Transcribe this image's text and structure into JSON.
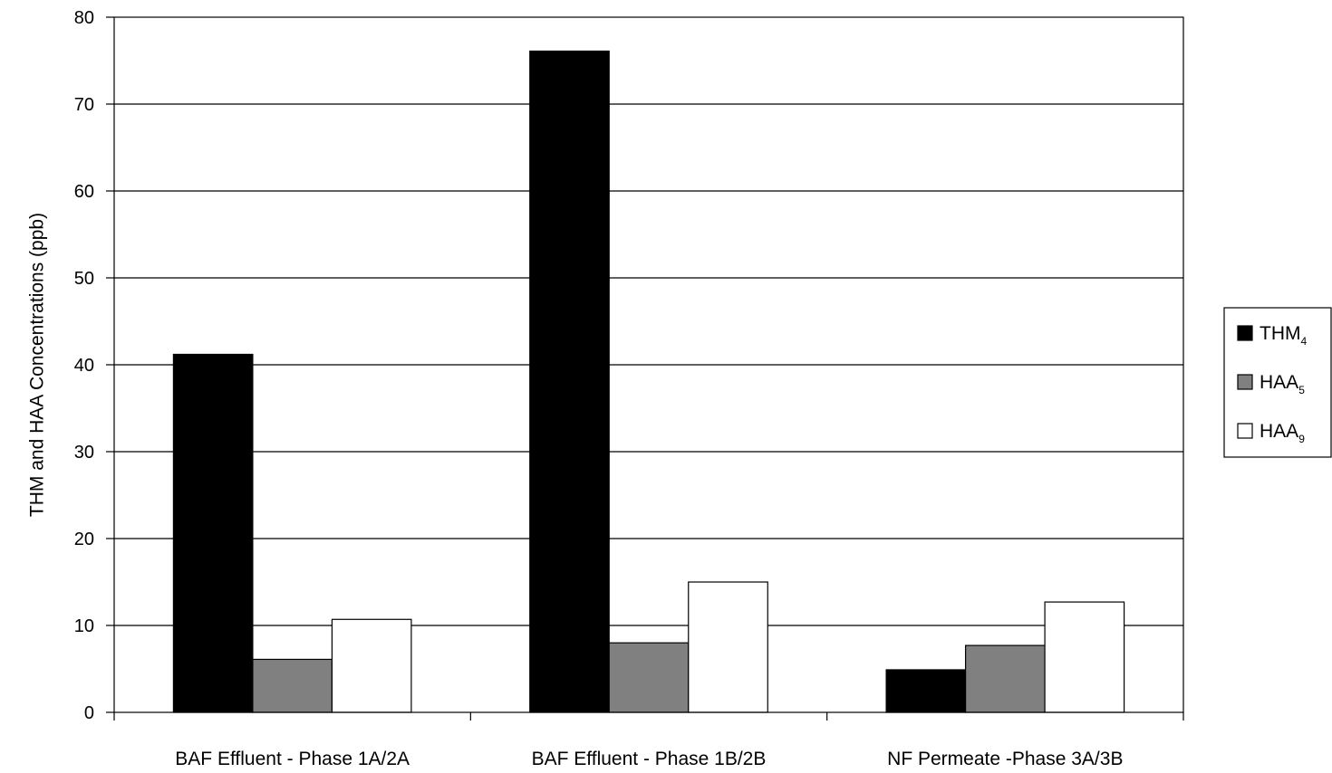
{
  "chart_data": {
    "type": "bar",
    "title": "",
    "xlabel": "",
    "ylabel": "THM and HAA Concentrations  (ppb)",
    "ylim": [
      0,
      80
    ],
    "yticks": [
      0,
      10,
      20,
      30,
      40,
      50,
      60,
      70,
      80
    ],
    "grid": true,
    "legend_position": "right",
    "categories": [
      "BAF Effluent   - Phase 1A/2A",
      "BAF Effluent   - Phase 1B/2B",
      "NF Permeate  -Phase 3A/3B"
    ],
    "series": [
      {
        "name": "THM",
        "sub": "4",
        "color": "#000000",
        "values": [
          41.2,
          76.1,
          4.9
        ]
      },
      {
        "name": "HAA",
        "sub": "5",
        "color": "#808080",
        "values": [
          6.1,
          8.0,
          7.7
        ]
      },
      {
        "name": "HAA",
        "sub": "9",
        "color": "#ffffff",
        "values": [
          10.7,
          15.0,
          12.7
        ]
      }
    ]
  }
}
